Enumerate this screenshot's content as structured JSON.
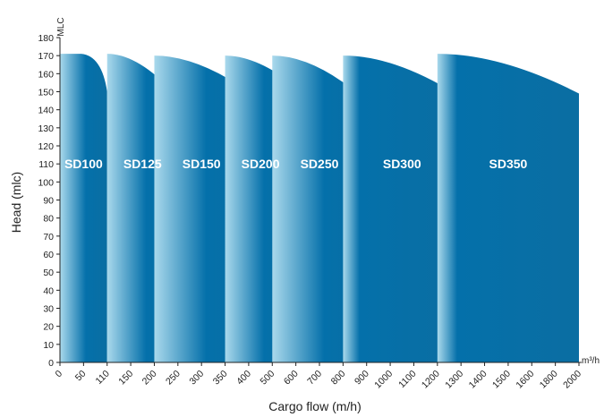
{
  "chart_data": {
    "type": "area",
    "title": "",
    "ylabel": "Head (mlc)",
    "xlabel": "Cargo flow (m/h)",
    "y_unit": "MLC",
    "x_unit": "m³/h",
    "ylim": [
      0,
      180
    ],
    "y_ticks": [
      0,
      10,
      20,
      30,
      40,
      50,
      60,
      70,
      80,
      90,
      100,
      110,
      120,
      130,
      140,
      150,
      160,
      170,
      180
    ],
    "x_ticks": [
      "0",
      "50",
      "110",
      "150",
      "200",
      "250",
      "300",
      "350",
      "400",
      "500",
      "600",
      "700",
      "800",
      "900",
      "1000",
      "1100",
      "1200",
      "1300",
      "1400",
      "1500",
      "1600",
      "1800",
      "2000"
    ],
    "grid": false,
    "legend": "none",
    "series": [
      {
        "name": "SD100",
        "x_start": "0",
        "x_end": "110",
        "head_max": 171,
        "head_end": 150,
        "curve": "flat-then-drop"
      },
      {
        "name": "SD125",
        "x_start": "110",
        "x_end": "250",
        "head_max": 171,
        "head_end": 147,
        "curve": "drop"
      },
      {
        "name": "SD150",
        "x_start": "200",
        "x_end": "400",
        "head_max": 170,
        "head_end": 150,
        "curve": "drop"
      },
      {
        "name": "SD200",
        "x_start": "350",
        "x_end": "600",
        "head_max": 170,
        "head_end": 153,
        "curve": "drop"
      },
      {
        "name": "SD250",
        "x_start": "500",
        "x_end": "900",
        "head_max": 170,
        "head_end": 145,
        "curve": "drop"
      },
      {
        "name": "SD300",
        "x_start": "800",
        "x_end": "1300",
        "head_max": 170,
        "head_end": 147,
        "curve": "drop"
      },
      {
        "name": "SD350",
        "x_start": "1200",
        "x_end": "2000",
        "head_max": 171,
        "head_end": 149,
        "curve": "drop"
      }
    ],
    "colors": {
      "light": "#aad9ec",
      "dark": "#0b6ea2",
      "mid": "#0470aa"
    }
  }
}
